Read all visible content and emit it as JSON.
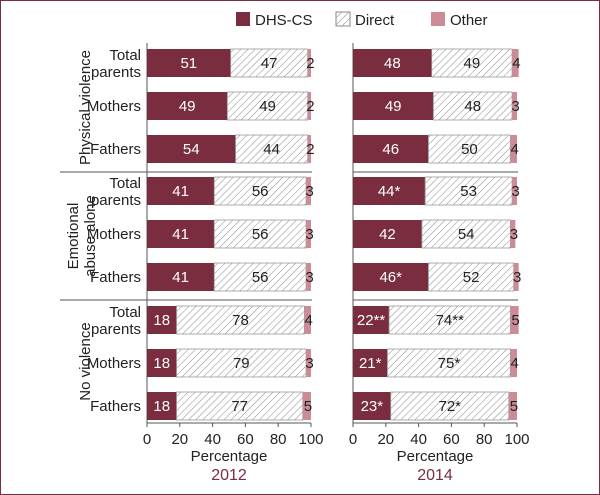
{
  "chart_data": {
    "type": "bar",
    "stacked": true,
    "orientation": "horizontal",
    "legend": {
      "placement": "top",
      "entries": [
        {
          "name": "DHS-CS",
          "color": "#7a2d3e",
          "pattern": "solid"
        },
        {
          "name": "Direct",
          "color": "#ffffff",
          "pattern": "hatched"
        },
        {
          "name": "Other",
          "color": "#cc8c95",
          "pattern": "solid"
        }
      ]
    },
    "xlabel": "Percentage",
    "xlim": [
      0,
      100
    ],
    "xticks": [
      "0",
      "20",
      "40",
      "60",
      "80",
      "100"
    ],
    "groups": [
      {
        "label": "Physical violence",
        "rows": [
          {
            "label": "Total parents"
          },
          {
            "label": "Mothers"
          },
          {
            "label": "Fathers"
          }
        ]
      },
      {
        "label": "Emotional abuse alone",
        "rows": [
          {
            "label": "Total parents"
          },
          {
            "label": "Mothers"
          },
          {
            "label": "Fathers"
          }
        ]
      },
      {
        "label": "No violence",
        "rows": [
          {
            "label": "Total parents"
          },
          {
            "label": "Mothers"
          },
          {
            "label": "Fathers"
          }
        ]
      }
    ],
    "panels": [
      {
        "year": "2012",
        "series": [
          {
            "name": "DHS-CS",
            "values": [
              51,
              49,
              54,
              41,
              41,
              41,
              18,
              18,
              18
            ],
            "labels": [
              "51",
              "49",
              "54",
              "41",
              "41",
              "41",
              "18",
              "18",
              "18"
            ]
          },
          {
            "name": "Direct",
            "values": [
              47,
              49,
              44,
              56,
              56,
              56,
              78,
              79,
              77
            ],
            "labels": [
              "47",
              "49",
              "44",
              "56",
              "56",
              "56",
              "78",
              "79",
              "77"
            ]
          },
          {
            "name": "Other",
            "values": [
              2,
              2,
              2,
              3,
              3,
              3,
              4,
              3,
              5
            ],
            "labels": [
              "2",
              "2",
              "2",
              "3",
              "3",
              "3",
              "4",
              "3",
              "5"
            ]
          }
        ]
      },
      {
        "year": "2014",
        "series": [
          {
            "name": "DHS-CS",
            "values": [
              48,
              49,
              46,
              44,
              42,
              46,
              22,
              21,
              23
            ],
            "labels": [
              "48",
              "49",
              "46",
              "44*",
              "42",
              "46*",
              "22**",
              "21*",
              "23*"
            ]
          },
          {
            "name": "Direct",
            "values": [
              49,
              48,
              50,
              53,
              54,
              52,
              74,
              75,
              72
            ],
            "labels": [
              "49",
              "48",
              "50",
              "53",
              "54",
              "52",
              "74**",
              "75*",
              "72*"
            ]
          },
          {
            "name": "Other",
            "values": [
              4,
              3,
              4,
              3,
              3,
              3,
              5,
              4,
              5
            ],
            "labels": [
              "4",
              "3",
              "4",
              "3",
              "3",
              "3",
              "5",
              "4",
              "5"
            ]
          }
        ]
      }
    ]
  }
}
